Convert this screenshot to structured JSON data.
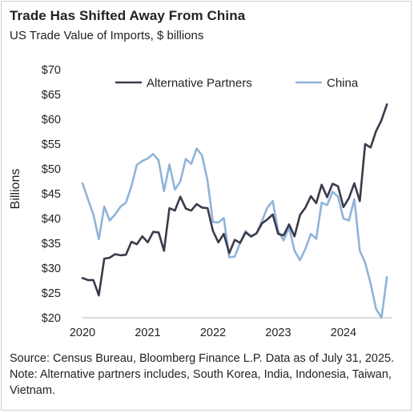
{
  "chart_data": {
    "type": "line",
    "title": "Trade Has Shifted Away From China",
    "subtitle": "US Trade Value of Imports, $ billions",
    "ylabel": "Billions",
    "xlabel": "",
    "ylim": [
      20,
      70
    ],
    "xlim": [
      2020,
      2024.75
    ],
    "y_ticks": [
      20,
      25,
      30,
      35,
      40,
      45,
      50,
      55,
      60,
      65,
      70
    ],
    "y_tick_labels": [
      "$20",
      "$25",
      "$30",
      "$35",
      "$40",
      "$45",
      "$50",
      "$55",
      "$60",
      "$65",
      "$70"
    ],
    "x_ticks": [
      2020,
      2021,
      2022,
      2023,
      2024
    ],
    "x_tick_labels": [
      "2020",
      "2021",
      "2022",
      "2023",
      "2024"
    ],
    "grid": false,
    "legend": "top",
    "series": [
      {
        "name": "Alternative Partners",
        "color": "#3a3a4a",
        "x": [
          2020.0,
          2020.0833,
          2020.1667,
          2020.25,
          2020.3333,
          2020.4167,
          2020.5,
          2020.5833,
          2020.6667,
          2020.75,
          2020.8333,
          2020.9167,
          2021.0,
          2021.0833,
          2021.1667,
          2021.25,
          2021.3333,
          2021.4167,
          2021.5,
          2021.5833,
          2021.6667,
          2021.75,
          2021.8333,
          2021.9167,
          2022.0,
          2022.0833,
          2022.1667,
          2022.25,
          2022.3333,
          2022.4167,
          2022.5,
          2022.5833,
          2022.6667,
          2022.75,
          2022.8333,
          2022.9167,
          2023.0,
          2023.0833,
          2023.1667,
          2023.25,
          2023.3333,
          2023.4167,
          2023.5,
          2023.5833,
          2023.6667,
          2023.75,
          2023.8333,
          2023.9167,
          2024.0,
          2024.0833,
          2024.1667,
          2024.25,
          2024.3333,
          2024.4167,
          2024.5,
          2024.5833,
          2024.6667
        ],
        "values": [
          28.0,
          27.6,
          27.6,
          24.5,
          31.9,
          32.1,
          32.8,
          32.6,
          32.7,
          35.3,
          34.8,
          36.4,
          35.2,
          37.3,
          37.2,
          33.5,
          42.1,
          41.6,
          44.4,
          42.0,
          41.6,
          42.9,
          42.2,
          42.1,
          37.5,
          35.2,
          36.9,
          33.0,
          35.7,
          35.1,
          37.2,
          36.4,
          37.0,
          39.0,
          39.8,
          40.8,
          36.9,
          36.6,
          38.8,
          36.4,
          40.7,
          42.2,
          44.5,
          43.1,
          46.8,
          44.3,
          47.0,
          46.5,
          42.3,
          44.1,
          47.1,
          43.5,
          55.0,
          54.3,
          57.6,
          59.8,
          63.0
        ]
      },
      {
        "name": "China",
        "color": "#8fb3d9",
        "x": [
          2020.0,
          2020.0833,
          2020.1667,
          2020.25,
          2020.3333,
          2020.4167,
          2020.5,
          2020.5833,
          2020.6667,
          2020.75,
          2020.8333,
          2020.9167,
          2021.0,
          2021.0833,
          2021.1667,
          2021.25,
          2021.3333,
          2021.4167,
          2021.5,
          2021.5833,
          2021.6667,
          2021.75,
          2021.8333,
          2021.9167,
          2022.0,
          2022.0833,
          2022.1667,
          2022.25,
          2022.3333,
          2022.4167,
          2022.5,
          2022.5833,
          2022.6667,
          2022.75,
          2022.8333,
          2022.9167,
          2023.0,
          2023.0833,
          2023.1667,
          2023.25,
          2023.3333,
          2023.4167,
          2023.5,
          2023.5833,
          2023.6667,
          2023.75,
          2023.8333,
          2023.9167,
          2024.0,
          2024.0833,
          2024.1667,
          2024.25,
          2024.3333,
          2024.4167,
          2024.5,
          2024.5833,
          2024.6667
        ],
        "values": [
          47.1,
          43.9,
          40.8,
          35.8,
          42.4,
          39.6,
          40.8,
          42.4,
          43.2,
          46.5,
          50.8,
          51.6,
          52.1,
          53.0,
          51.7,
          45.5,
          50.9,
          45.8,
          47.5,
          52.0,
          51.0,
          54.1,
          52.7,
          47.6,
          39.3,
          39.2,
          40.1,
          32.2,
          32.3,
          35.1,
          37.5,
          36.3,
          37.0,
          39.5,
          42.2,
          43.5,
          37.4,
          35.6,
          38.2,
          33.5,
          31.6,
          33.9,
          36.9,
          35.9,
          43.2,
          42.7,
          45.4,
          44.4,
          40.0,
          39.6,
          43.9,
          33.5,
          31.1,
          26.9,
          21.8,
          20.0,
          28.2
        ]
      }
    ]
  },
  "source_note": "Source: Census Bureau, Bloomberg Finance L.P. Data as of July 31, 2025. Note: Alternative partners includes, South Korea, India, Indonesia, Taiwan, Vietnam."
}
